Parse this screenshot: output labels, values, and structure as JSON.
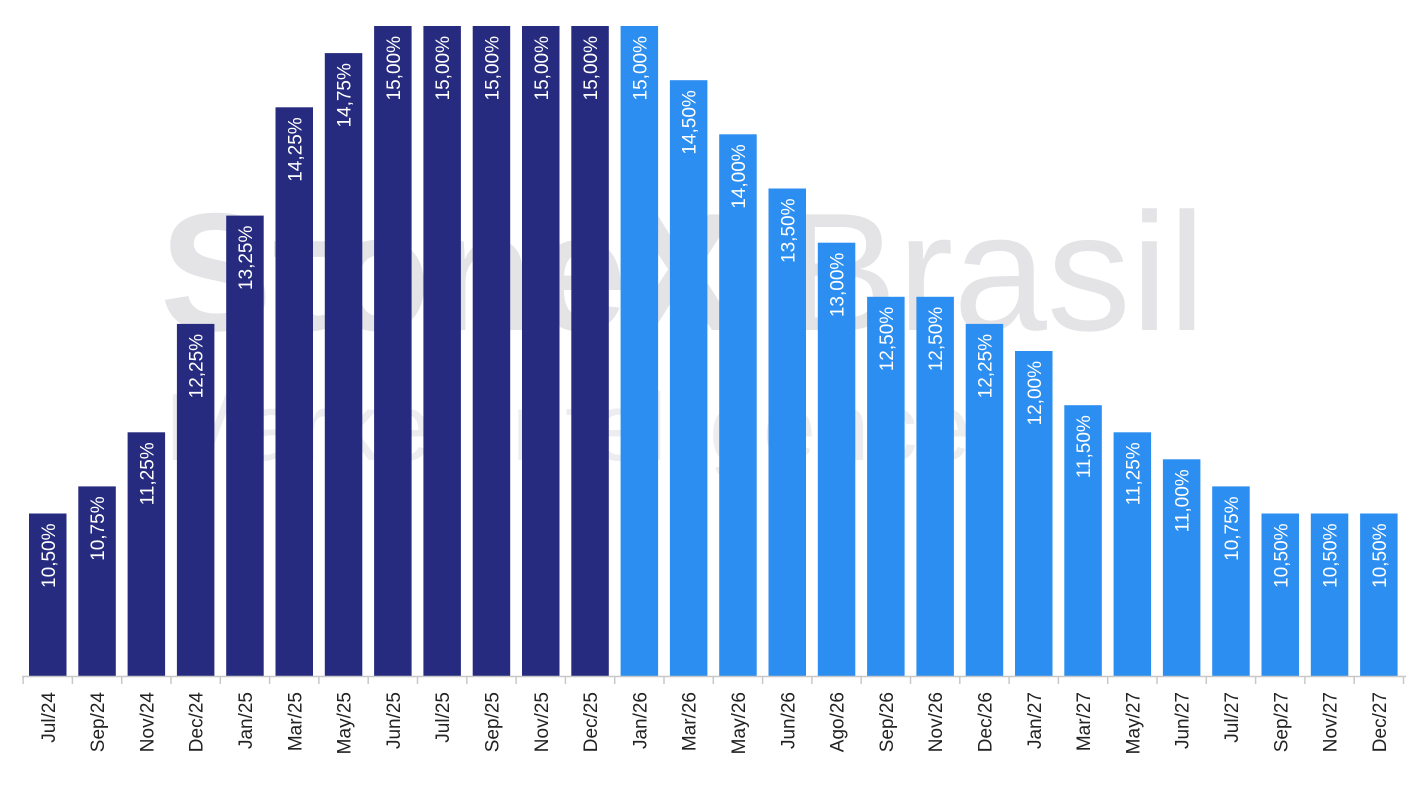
{
  "watermark": {
    "line1_bold": "StoneX",
    "line1_light": " Brasil",
    "line2": "Market Intelligence",
    "color": "#e4e4e7"
  },
  "chart_data": {
    "type": "bar",
    "title": "",
    "xlabel": "",
    "ylabel": "",
    "ylim": [
      0,
      15
    ],
    "grid": false,
    "legend": "none",
    "categories": [
      "Jul/24",
      "Sep/24",
      "Nov/24",
      "Dec/24",
      "Jan/25",
      "Mar/25",
      "May/25",
      "Jun/25",
      "Jul/25",
      "Sep/25",
      "Nov/25",
      "Dec/25",
      "Jan/26",
      "Mar/26",
      "May/26",
      "Jun/26",
      "Ago/26",
      "Sep/26",
      "Nov/26",
      "Dec/26",
      "Jan/27",
      "Mar/27",
      "May/27",
      "Jun/27",
      "Jul/27",
      "Sep/27",
      "Nov/27",
      "Dec/27"
    ],
    "values": [
      10.5,
      10.75,
      11.25,
      12.25,
      13.25,
      14.25,
      14.75,
      15,
      15,
      15,
      15,
      15,
      15,
      14.5,
      14,
      13.5,
      13,
      12.5,
      12.5,
      12.25,
      12,
      11.5,
      11.25,
      11,
      10.75,
      10.5,
      10.5,
      10.5
    ],
    "value_labels": [
      "10,50%",
      "10,75%",
      "11,25%",
      "12,25%",
      "13,25%",
      "14,25%",
      "14,75%",
      "15,00%",
      "15,00%",
      "15,00%",
      "15,00%",
      "15,00%",
      "15,00%",
      "14,50%",
      "14,00%",
      "13,50%",
      "13,00%",
      "12,50%",
      "12,50%",
      "12,25%",
      "12,00%",
      "11,50%",
      "11,25%",
      "11,00%",
      "10,75%",
      "10,50%",
      "10,50%",
      "10,50%"
    ],
    "colors": {
      "actual": "#262b7f",
      "forecast": "#2b8ef0",
      "axis": "#c8c8c8"
    },
    "forecast_start_index": 12
  }
}
